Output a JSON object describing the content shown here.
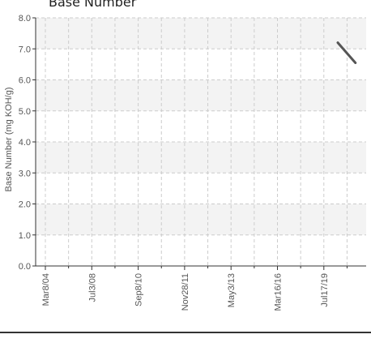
{
  "chart_data": {
    "type": "line",
    "title": "Base Number",
    "ylabel": "Base Number (mg KOH/g)",
    "xlabel": "",
    "ylim": [
      0,
      8
    ],
    "yticks": [
      "0.0",
      "1.0",
      "2.0",
      "3.0",
      "4.0",
      "5.0",
      "6.0",
      "7.0",
      "8.0"
    ],
    "xticks": [
      "Mar8/04",
      "Jul3/08",
      "Sep8/10",
      "Nov28/11",
      "May3/13",
      "Mar16/16",
      "Jul17/19"
    ],
    "grid": true,
    "series": [
      {
        "name": "",
        "color": "#555555",
        "points": [
          {
            "x": "Jul17/19+",
            "xi": 6.3,
            "y": 7.2
          },
          {
            "x": "end",
            "xi": 6.68,
            "y": 6.55
          }
        ]
      }
    ]
  },
  "colors": {
    "band": "#f3f3f3",
    "grid": "#cccccc",
    "axis": "#333333",
    "line": "#555555"
  }
}
